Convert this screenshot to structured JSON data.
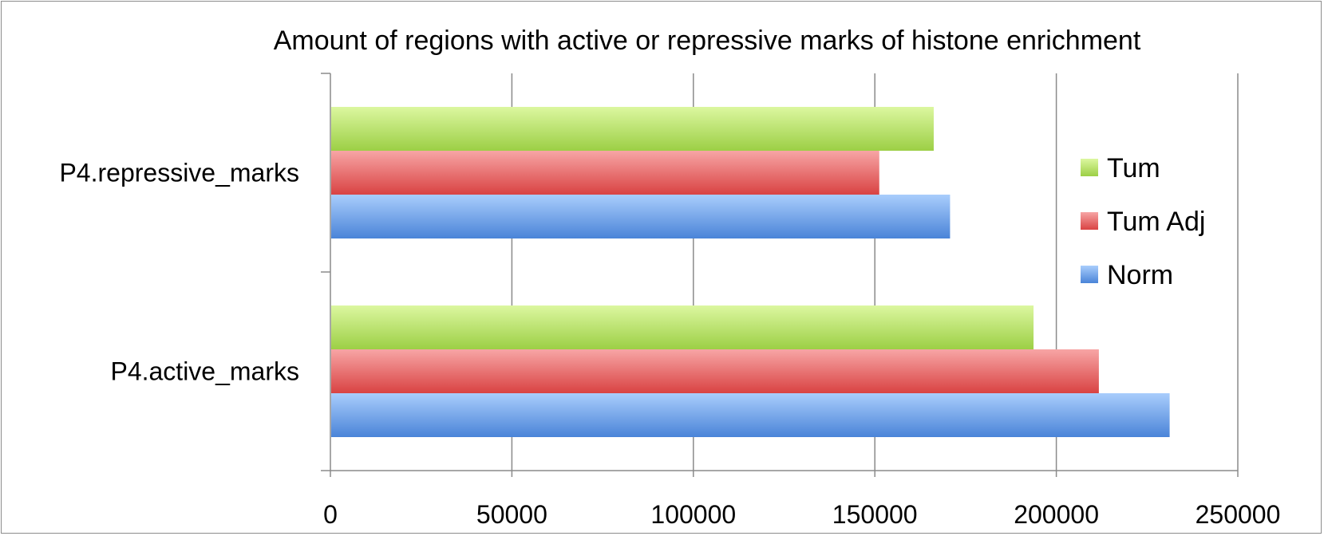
{
  "chart_data": {
    "type": "bar",
    "orientation": "horizontal",
    "title": "Amount of regions with active or repressive marks of histone enrichment",
    "categories": [
      "P4.repressive_marks",
      "P4.active_marks"
    ],
    "series": [
      {
        "name": "Tum",
        "values": [
          166000,
          193500
        ],
        "color": "#a8d84e"
      },
      {
        "name": "Tum Adj",
        "values": [
          151000,
          211500
        ],
        "color": "#e05555"
      },
      {
        "name": "Norm",
        "values": [
          170500,
          231000
        ],
        "color": "#5b93e0"
      }
    ],
    "xlim": [
      0,
      250000
    ],
    "xticks": [
      "0",
      "50000",
      "100000",
      "150000",
      "200000",
      "250000"
    ],
    "grid": true,
    "legend_position": "right"
  }
}
